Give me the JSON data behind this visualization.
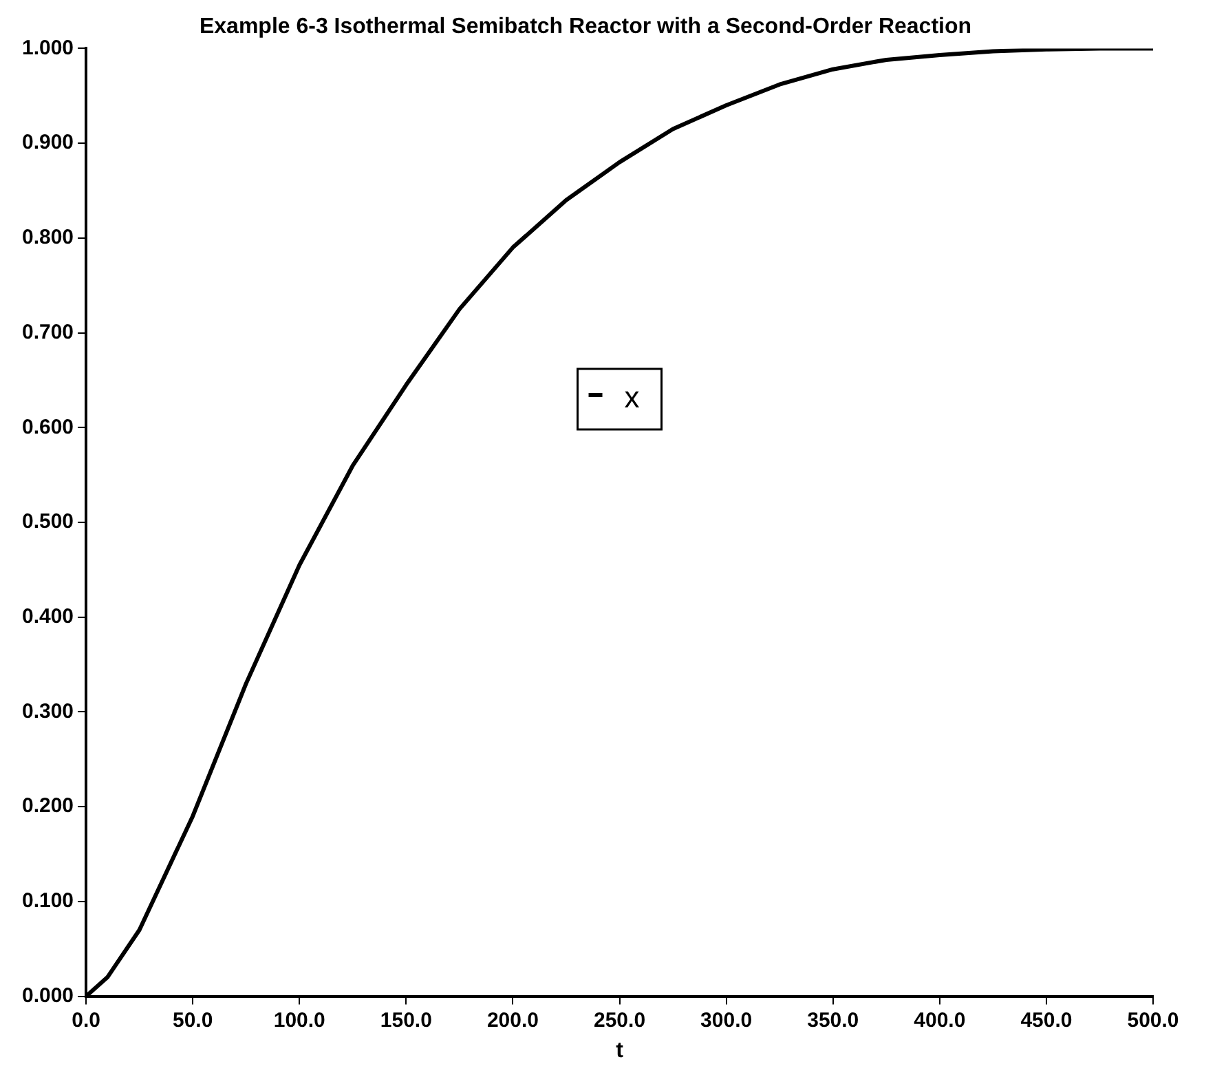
{
  "chart_data": {
    "type": "line",
    "title": "Example 6-3 Isothermal Semibatch Reactor with a Second-Order Reaction",
    "xlabel": "t",
    "series": [
      {
        "name": "x",
        "color": "#000000",
        "x": [
          0,
          10,
          25,
          50,
          75,
          100,
          125,
          150,
          175,
          200,
          225,
          250,
          275,
          300,
          325,
          350,
          375,
          400,
          425,
          450,
          475,
          500
        ],
        "values": [
          0,
          0.02,
          0.07,
          0.19,
          0.33,
          0.455,
          0.56,
          0.645,
          0.725,
          0.79,
          0.84,
          0.88,
          0.915,
          0.94,
          0.962,
          0.978,
          0.988,
          0.993,
          0.997,
          0.999,
          1.0,
          1.0
        ]
      }
    ],
    "xlim": [
      0,
      500
    ],
    "ylim": [
      0,
      1
    ],
    "xticks": [
      {
        "value": 0,
        "label": "0.0"
      },
      {
        "value": 50,
        "label": "50.0"
      },
      {
        "value": 100,
        "label": "100.0"
      },
      {
        "value": 150,
        "label": "150.0"
      },
      {
        "value": 200,
        "label": "200.0"
      },
      {
        "value": 250,
        "label": "250.0"
      },
      {
        "value": 300,
        "label": "300.0"
      },
      {
        "value": 350,
        "label": "350.0"
      },
      {
        "value": 400,
        "label": "400.0"
      },
      {
        "value": 450,
        "label": "450.0"
      },
      {
        "value": 500,
        "label": "500.0"
      }
    ],
    "yticks": [
      {
        "value": 0,
        "label": "0.000"
      },
      {
        "value": 0.1,
        "label": "0.100"
      },
      {
        "value": 0.2,
        "label": "0.200"
      },
      {
        "value": 0.3,
        "label": "0.300"
      },
      {
        "value": 0.4,
        "label": "0.400"
      },
      {
        "value": 0.5,
        "label": "0.500"
      },
      {
        "value": 0.6,
        "label": "0.600"
      },
      {
        "value": 0.7,
        "label": "0.700"
      },
      {
        "value": 0.8,
        "label": "0.800"
      },
      {
        "value": 0.9,
        "label": "0.900"
      },
      {
        "value": 1,
        "label": "1.000"
      }
    ],
    "grid": false,
    "legend": "center",
    "marker": "none",
    "line_style": "solid"
  }
}
